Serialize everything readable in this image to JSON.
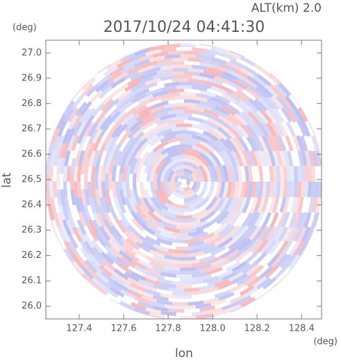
{
  "chart_data": {
    "type": "radar-image",
    "title": "2017/10/24 04:41:30",
    "subtitle": "ALT(km) 2.0",
    "x_label": "lon",
    "y_label": "lat",
    "x_unit": "(deg)",
    "y_unit": "(deg)",
    "xlim": [
      127.25,
      128.49
    ],
    "ylim": [
      25.95,
      27.05
    ],
    "xticks": [
      127.4,
      127.6,
      127.8,
      {
        "value": 128,
        "label": "128.0"
      },
      128.2,
      128.4
    ],
    "yticks": [
      {
        "value": 26,
        "label": "26.0"
      },
      26.1,
      26.2,
      26.3,
      26.4,
      26.5,
      26.6,
      26.7,
      26.8,
      26.9,
      {
        "value": 27,
        "label": "27.0"
      }
    ]
  }
}
